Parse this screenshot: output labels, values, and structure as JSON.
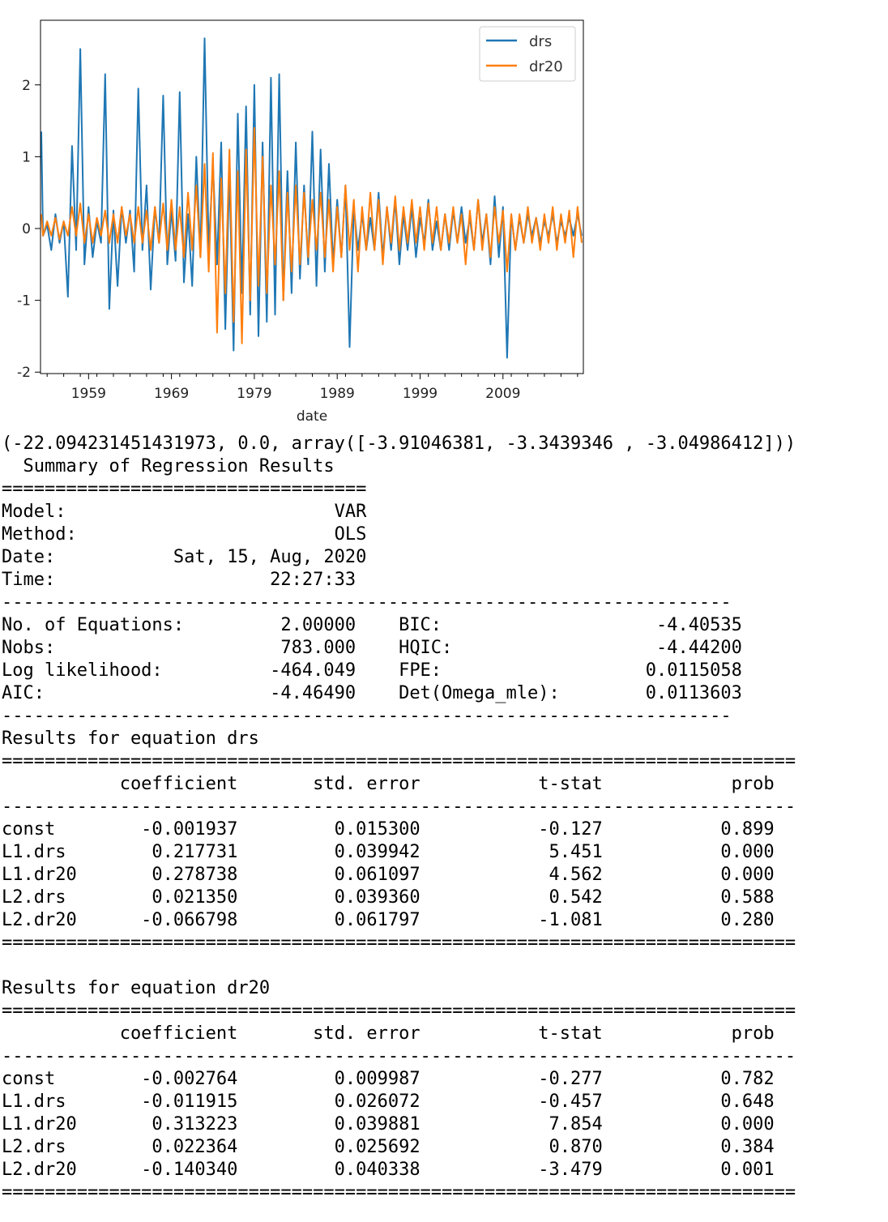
{
  "chart_data": {
    "type": "line",
    "title": "",
    "xlabel": "date",
    "ylabel": "",
    "x_range": [
      1953.2,
      2018.7
    ],
    "ylim": [
      -2.02,
      2.9
    ],
    "x_ticks": [
      1959,
      1969,
      1979,
      1989,
      1999,
      2009
    ],
    "x_tick_labels": [
      "1959",
      "1969",
      "1979",
      "1989",
      "1999",
      "2009"
    ],
    "y_ticks": [
      -2,
      -1,
      0,
      1,
      2
    ],
    "y_tick_labels": [
      "-2",
      "-1",
      "0",
      "1",
      "2"
    ],
    "grid": false,
    "legend_placement": "upper-right",
    "series": [
      {
        "name": "drs",
        "color": "#1f77b4",
        "x": [
          1953.3,
          1953.5,
          1954.0,
          1954.5,
          1955.0,
          1955.5,
          1956.0,
          1956.5,
          1957.0,
          1957.5,
          1958.0,
          1958.5,
          1959.0,
          1959.5,
          1960.0,
          1960.5,
          1961.0,
          1961.5,
          1962.0,
          1962.5,
          1963.0,
          1963.5,
          1964.0,
          1964.5,
          1965.0,
          1965.5,
          1966.0,
          1966.5,
          1967.0,
          1967.5,
          1968.0,
          1968.5,
          1969.0,
          1969.5,
          1970.0,
          1970.5,
          1971.0,
          1971.5,
          1972.0,
          1972.5,
          1973.0,
          1973.5,
          1974.0,
          1974.5,
          1975.0,
          1975.5,
          1976.0,
          1976.5,
          1977.0,
          1977.5,
          1978.0,
          1978.5,
          1979.0,
          1979.5,
          1980.0,
          1980.5,
          1981.0,
          1981.5,
          1982.0,
          1982.5,
          1983.0,
          1983.5,
          1984.0,
          1984.5,
          1985.0,
          1985.5,
          1986.0,
          1986.5,
          1987.0,
          1987.5,
          1988.0,
          1988.5,
          1989.0,
          1989.5,
          1990.0,
          1990.5,
          1991.0,
          1991.5,
          1992.0,
          1992.5,
          1993.0,
          1993.5,
          1994.0,
          1994.5,
          1995.0,
          1995.5,
          1996.0,
          1996.5,
          1997.0,
          1997.5,
          1998.0,
          1998.5,
          1999.0,
          1999.5,
          2000.0,
          2000.5,
          2001.0,
          2001.5,
          2002.0,
          2002.5,
          2003.0,
          2003.5,
          2004.0,
          2004.5,
          2005.0,
          2005.5,
          2006.0,
          2006.5,
          2007.0,
          2007.5,
          2008.0,
          2008.5,
          2009.0,
          2009.5,
          2010.0,
          2010.5,
          2011.0,
          2011.5,
          2012.0,
          2012.5,
          2013.0,
          2013.5,
          2014.0,
          2014.5,
          2015.0,
          2015.5,
          2016.0,
          2016.5,
          2017.0,
          2017.5,
          2018.0,
          2018.5
        ],
        "values": [
          1.35,
          -0.1,
          0.05,
          -0.3,
          0.2,
          -0.2,
          0.1,
          -0.95,
          1.15,
          -0.3,
          2.5,
          -0.5,
          0.3,
          -0.4,
          0.1,
          -0.2,
          2.15,
          -1.12,
          0.25,
          -0.8,
          0.3,
          -0.2,
          0.25,
          -0.6,
          1.95,
          -0.3,
          0.6,
          -0.85,
          0.3,
          -0.2,
          1.85,
          -0.5,
          0.25,
          -0.45,
          1.9,
          -0.75,
          0.2,
          -0.8,
          1.0,
          -0.4,
          2.65,
          -0.3,
          0.9,
          -0.5,
          1.2,
          -1.4,
          0.8,
          -1.7,
          1.6,
          -0.9,
          1.7,
          -1.2,
          2.0,
          -1.5,
          1.2,
          -1.3,
          2.1,
          -1.2,
          2.15,
          -1.0,
          0.8,
          -0.9,
          1.2,
          -0.7,
          0.6,
          -0.5,
          1.35,
          -0.8,
          1.1,
          -0.6,
          0.9,
          -0.5,
          0.4,
          -0.4,
          0.6,
          -1.65,
          0.3,
          -0.3,
          0.2,
          -0.3,
          0.15,
          -0.3,
          0.5,
          -0.4,
          0.3,
          -0.3,
          0.4,
          -0.5,
          0.2,
          -0.3,
          0.3,
          -0.4,
          0.15,
          -0.2,
          0.4,
          -0.3,
          0.1,
          -0.3,
          0.2,
          -0.3,
          0.25,
          -0.2,
          0.3,
          -0.2,
          0.15,
          -0.3,
          0.4,
          -0.2,
          0.2,
          -0.5,
          0.45,
          -0.4,
          0.3,
          -1.8,
          0.2,
          -0.3,
          0.15,
          -0.2,
          0.2,
          -0.1,
          0.15,
          -0.2,
          0.1,
          -0.1,
          0.2,
          -0.2,
          0.1,
          -0.1,
          0.15,
          -0.1,
          0.2,
          -0.1
        ]
      },
      {
        "name": "dr20",
        "color": "#ff7f0e",
        "x": [
          1953.3,
          1953.5,
          1954.0,
          1954.5,
          1955.0,
          1955.5,
          1956.0,
          1956.5,
          1957.0,
          1957.5,
          1958.0,
          1958.5,
          1959.0,
          1959.5,
          1960.0,
          1960.5,
          1961.0,
          1961.5,
          1962.0,
          1962.5,
          1963.0,
          1963.5,
          1964.0,
          1964.5,
          1965.0,
          1965.5,
          1966.0,
          1966.5,
          1967.0,
          1967.5,
          1968.0,
          1968.5,
          1969.0,
          1969.5,
          1970.0,
          1970.5,
          1971.0,
          1971.5,
          1972.0,
          1972.5,
          1973.0,
          1973.5,
          1974.0,
          1974.5,
          1975.0,
          1975.5,
          1976.0,
          1976.5,
          1977.0,
          1977.5,
          1978.0,
          1978.5,
          1979.0,
          1979.5,
          1980.0,
          1980.5,
          1981.0,
          1981.5,
          1982.0,
          1982.5,
          1983.0,
          1983.5,
          1984.0,
          1984.5,
          1985.0,
          1985.5,
          1986.0,
          1986.5,
          1987.0,
          1987.5,
          1988.0,
          1988.5,
          1989.0,
          1989.5,
          1990.0,
          1990.5,
          1991.0,
          1991.5,
          1992.0,
          1992.5,
          1993.0,
          1993.5,
          1994.0,
          1994.5,
          1995.0,
          1995.5,
          1996.0,
          1996.5,
          1997.0,
          1997.5,
          1998.0,
          1998.5,
          1999.0,
          1999.5,
          2000.0,
          2000.5,
          2001.0,
          2001.5,
          2002.0,
          2002.5,
          2003.0,
          2003.5,
          2004.0,
          2004.5,
          2005.0,
          2005.5,
          2006.0,
          2006.5,
          2007.0,
          2007.5,
          2008.0,
          2008.5,
          2009.0,
          2009.5,
          2010.0,
          2010.5,
          2011.0,
          2011.5,
          2012.0,
          2012.5,
          2013.0,
          2013.5,
          2014.0,
          2014.5,
          2015.0,
          2015.5,
          2016.0,
          2016.5,
          2017.0,
          2017.5,
          2018.0,
          2018.5
        ],
        "values": [
          0.2,
          -0.1,
          0.1,
          -0.1,
          0.15,
          -0.15,
          0.1,
          -0.1,
          0.3,
          -0.1,
          0.35,
          -0.2,
          0.2,
          -0.2,
          0.15,
          -0.1,
          0.25,
          -0.2,
          0.2,
          -0.2,
          0.3,
          -0.1,
          0.2,
          -0.2,
          0.3,
          -0.2,
          0.25,
          -0.3,
          0.3,
          -0.2,
          0.35,
          -0.3,
          0.4,
          -0.3,
          0.3,
          -0.4,
          0.5,
          -0.3,
          0.6,
          -0.4,
          0.9,
          -0.6,
          1.05,
          -1.45,
          0.7,
          -0.9,
          1.1,
          -1.3,
          0.8,
          -1.6,
          1.1,
          -1.0,
          1.4,
          -0.8,
          1.0,
          -0.9,
          0.6,
          -0.5,
          0.8,
          -1.0,
          0.5,
          -0.6,
          0.6,
          -0.5,
          0.5,
          -0.4,
          0.4,
          -0.3,
          0.5,
          -0.4,
          0.4,
          -0.6,
          0.3,
          -0.4,
          0.6,
          -0.3,
          0.4,
          -0.6,
          0.3,
          -0.3,
          0.5,
          -0.3,
          0.4,
          -0.5,
          0.3,
          -0.2,
          0.45,
          -0.3,
          0.3,
          -0.2,
          0.4,
          -0.2,
          0.3,
          -0.3,
          0.35,
          -0.2,
          0.3,
          -0.3,
          0.2,
          -0.2,
          0.3,
          -0.2,
          0.2,
          -0.5,
          0.25,
          -0.3,
          0.4,
          -0.3,
          0.2,
          -0.4,
          0.3,
          -0.2,
          0.25,
          -0.6,
          0.2,
          -0.3,
          0.2,
          -0.2,
          0.3,
          -0.2,
          0.15,
          -0.3,
          0.2,
          -0.2,
          0.3,
          -0.3,
          0.2,
          -0.2,
          0.25,
          -0.4,
          0.3,
          -0.2
        ]
      }
    ]
  },
  "console_output": {
    "lines": [
      "(-22.094231451431973, 0.0, array([-3.91046381, -3.3439346 , -3.04986412]))",
      "  Summary of Regression Results   ",
      "==================================",
      "Model:                         VAR",
      "Method:                        OLS",
      "Date:           Sat, 15, Aug, 2020",
      "Time:                    22:27:33",
      "--------------------------------------------------------------------",
      "No. of Equations:         2.00000    BIC:                    -4.40535",
      "Nobs:                     783.000    HQIC:                   -4.44200",
      "Log likelihood:          -464.049    FPE:                   0.0115058",
      "AIC:                     -4.46490    Det(Omega_mle):        0.0113603",
      "--------------------------------------------------------------------",
      "Results for equation drs",
      "==========================================================================",
      "           coefficient       std. error           t-stat            prob",
      "--------------------------------------------------------------------------",
      "const        -0.001937         0.015300           -0.127           0.899",
      "L1.drs        0.217731         0.039942            5.451           0.000",
      "L1.dr20       0.278738         0.061097            4.562           0.000",
      "L2.drs        0.021350         0.039360            0.542           0.588",
      "L2.dr20      -0.066798         0.061797           -1.081           0.280",
      "==========================================================================",
      "",
      "Results for equation dr20",
      "==========================================================================",
      "           coefficient       std. error           t-stat            prob",
      "--------------------------------------------------------------------------",
      "const        -0.002764         0.009987           -0.277           0.782",
      "L1.drs       -0.011915         0.026072           -0.457           0.648",
      "L1.dr20       0.313223         0.039881            7.854           0.000",
      "L2.drs        0.022364         0.025692            0.870           0.384",
      "L2.dr20      -0.140340         0.040338           -3.479           0.001",
      "=========================================================================="
    ]
  }
}
